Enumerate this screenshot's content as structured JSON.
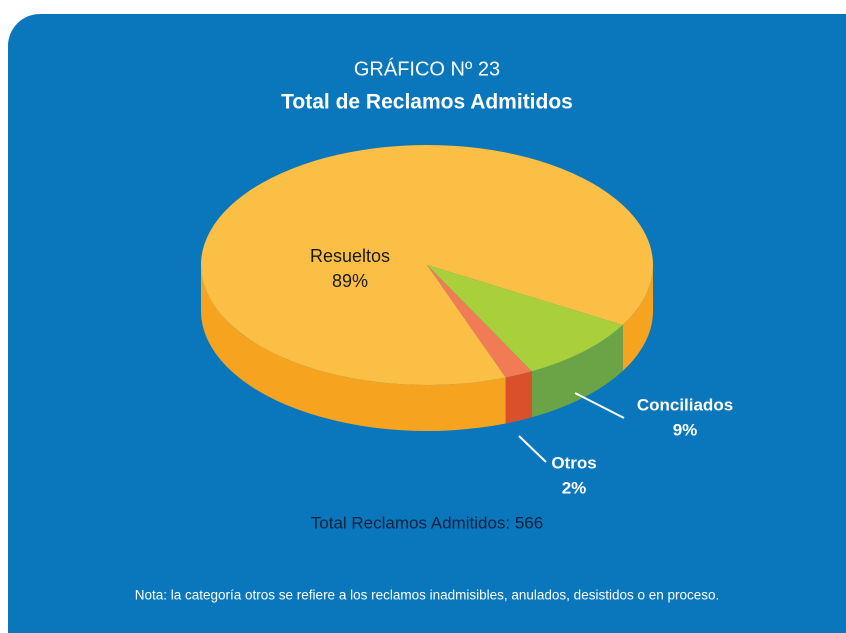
{
  "chart_data": {
    "type": "pie",
    "title": "GRÁFICO Nº 23",
    "subtitle": "Total de Reclamos Admitidos",
    "categories": [
      "Resueltos",
      "Conciliados",
      "Otros"
    ],
    "values": [
      89,
      9,
      2
    ],
    "value_labels": [
      "89%",
      "9%",
      "2%"
    ],
    "colors": [
      "#fcbf45",
      "#a9cf3b",
      "#f07b55"
    ],
    "annotations": [
      "Total Reclamos Admitidos: 566",
      "Nota: la categoría otros se refiere a los reclamos inadmisibles, anulados, desistidos o en proceso."
    ]
  }
}
